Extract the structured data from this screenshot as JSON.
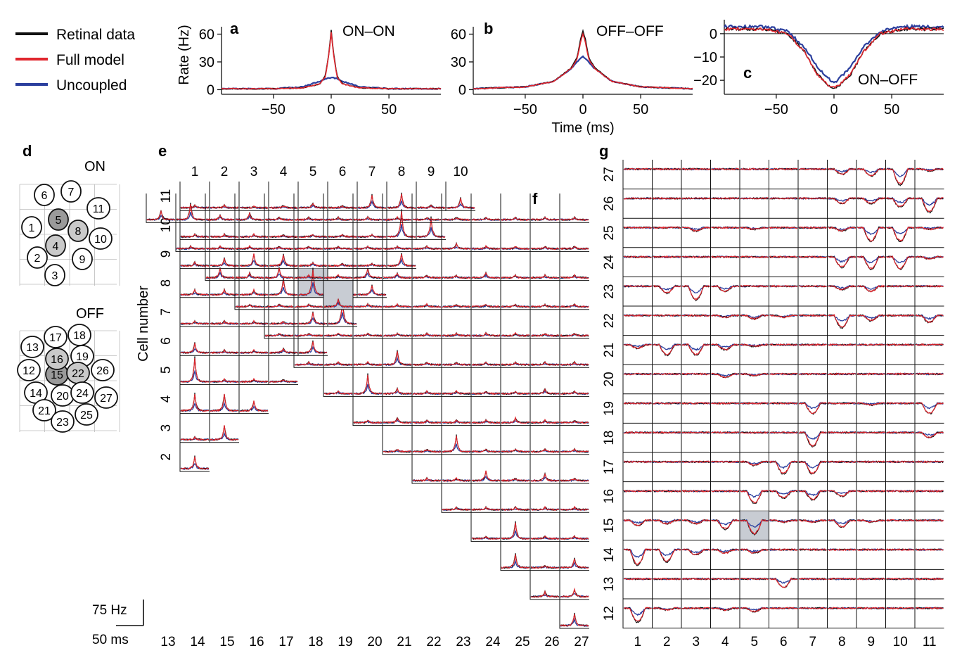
{
  "colors": {
    "retinal": "#111111",
    "full_model": "#e0262e",
    "uncoupled": "#2b3f9e",
    "grid": "#bbbbbb",
    "highlight": "#c8ccd3",
    "cell_fill": "#c9c9c9",
    "cell_fill_dark": "#9a9a9a"
  },
  "legend": [
    "Retinal data",
    "Full model",
    "Uncoupled"
  ],
  "shared": {
    "ylabel": "Rate (Hz)",
    "xlabel": "Time (ms)",
    "xticks": [
      -50,
      0,
      50
    ]
  },
  "panels": {
    "a": {
      "letter": "a",
      "title": "ON–ON",
      "yticks": [
        0,
        30,
        60
      ]
    },
    "b": {
      "letter": "b",
      "title": "OFF–OFF",
      "yticks": [
        0,
        30,
        60
      ]
    },
    "c": {
      "letter": "c",
      "title": "ON–OFF",
      "yticks": [
        0,
        -10,
        -20
      ]
    },
    "d": {
      "letter": "d",
      "on_title": "ON",
      "off_title": "OFF"
    },
    "e": {
      "letter": "e",
      "ylabel": "Cell number"
    },
    "f": {
      "letter": "f"
    },
    "g": {
      "letter": "g"
    }
  },
  "scale_bar": {
    "rate": "75 Hz",
    "time": "50 ms"
  },
  "chart_data": [
    {
      "type": "line",
      "panel": "a",
      "title": "ON–ON",
      "xlabel": "",
      "ylabel": "Rate (Hz)",
      "xlim": [
        -95,
        95
      ],
      "ylim": [
        -5,
        68
      ],
      "series": [
        {
          "name": "Retinal data",
          "x": [
            -95,
            -50,
            -25,
            -10,
            -5,
            -2,
            0,
            2,
            5,
            10,
            25,
            50,
            95
          ],
          "values": [
            1,
            1,
            2,
            6,
            15,
            40,
            64,
            40,
            15,
            6,
            2,
            1,
            1
          ]
        },
        {
          "name": "Full model",
          "x": [
            -95,
            -50,
            -25,
            -10,
            -5,
            -2,
            0,
            2,
            5,
            10,
            25,
            50,
            95
          ],
          "values": [
            1,
            1,
            2,
            6,
            14,
            38,
            62,
            38,
            14,
            6,
            2,
            1,
            1
          ]
        },
        {
          "name": "Uncoupled",
          "x": [
            -95,
            -50,
            -25,
            -10,
            -5,
            0,
            5,
            10,
            25,
            50,
            95
          ],
          "values": [
            1,
            1,
            3,
            9,
            12,
            13,
            12,
            9,
            3,
            1,
            1
          ]
        }
      ]
    },
    {
      "type": "line",
      "panel": "b",
      "title": "OFF–OFF",
      "xlabel": "Time (ms)",
      "ylabel": "",
      "xlim": [
        -95,
        95
      ],
      "ylim": [
        -5,
        68
      ],
      "series": [
        {
          "name": "Retinal data",
          "x": [
            -95,
            -50,
            -25,
            -10,
            -5,
            -2,
            0,
            2,
            5,
            10,
            25,
            50,
            95
          ],
          "values": [
            1,
            3,
            9,
            24,
            35,
            55,
            63,
            55,
            35,
            24,
            9,
            3,
            1
          ]
        },
        {
          "name": "Full model",
          "x": [
            -95,
            -50,
            -25,
            -10,
            -5,
            -2,
            0,
            2,
            5,
            10,
            25,
            50,
            95
          ],
          "values": [
            1,
            3,
            9,
            23,
            33,
            52,
            60,
            52,
            33,
            23,
            9,
            3,
            1
          ]
        },
        {
          "name": "Uncoupled",
          "x": [
            -95,
            -50,
            -25,
            -10,
            -5,
            0,
            5,
            10,
            25,
            50,
            95
          ],
          "values": [
            1,
            3,
            9,
            23,
            30,
            36,
            30,
            23,
            9,
            3,
            1
          ]
        }
      ]
    },
    {
      "type": "line",
      "panel": "c",
      "title": "ON–OFF",
      "xlabel": "",
      "ylabel": "",
      "xlim": [
        -95,
        95
      ],
      "ylim": [
        -26,
        6
      ],
      "series": [
        {
          "name": "Retinal data",
          "x": [
            -95,
            -60,
            -40,
            -25,
            -15,
            -5,
            0,
            5,
            15,
            25,
            40,
            60,
            95
          ],
          "values": [
            2,
            2,
            0,
            -8,
            -17,
            -22,
            -24,
            -22,
            -17,
            -8,
            0,
            2,
            2
          ]
        },
        {
          "name": "Full model",
          "x": [
            -95,
            -60,
            -40,
            -25,
            -15,
            -5,
            0,
            5,
            15,
            25,
            40,
            60,
            95
          ],
          "values": [
            2,
            2,
            0,
            -8,
            -17,
            -22,
            -23,
            -22,
            -17,
            -8,
            0,
            2,
            2
          ]
        },
        {
          "name": "Uncoupled",
          "x": [
            -95,
            -60,
            -40,
            -25,
            -15,
            -5,
            0,
            5,
            15,
            25,
            40,
            60,
            95
          ],
          "values": [
            3,
            3,
            1,
            -6,
            -14,
            -19,
            -21,
            -19,
            -14,
            -6,
            1,
            3,
            3
          ]
        }
      ]
    },
    {
      "type": "line",
      "panel": "e",
      "note": "pairwise ON–ON cross-correlations, triangular grid",
      "columns": [
        "1",
        "2",
        "3",
        "4",
        "5",
        "6",
        "7",
        "8",
        "9",
        "10"
      ],
      "rows": [
        "11",
        "10",
        "9",
        "8",
        "7",
        "6",
        "5",
        "4",
        "3",
        "2"
      ],
      "peaks": [
        [
          0.1,
          0.1,
          0.05,
          0.1,
          0.2,
          0.1,
          0.55,
          0.6,
          0.1,
          0.4
        ],
        [
          0.1,
          0.1,
          0.1,
          0.1,
          0.1,
          0.1,
          0.1,
          1.1,
          0.8
        ],
        [
          0.15,
          0.3,
          0.5,
          0.5,
          0.15,
          0.1,
          0.1,
          0.5
        ],
        [
          0.2,
          0.2,
          0.2,
          0.7,
          1.1,
          0.1,
          0.4
        ],
        [
          0.1,
          0.1,
          0.1,
          0.1,
          0.5,
          1.0
        ],
        [
          0.4,
          0.1,
          0.1,
          0.2,
          0.5
        ],
        [
          1.0,
          0.1,
          0.1,
          0.1
        ],
        [
          0.7,
          0.7,
          0.4
        ],
        [
          0.1,
          0.6
        ],
        [
          0.5
        ]
      ],
      "highlight": [
        3,
        4
      ]
    },
    {
      "type": "line",
      "panel": "f",
      "note": "pairwise OFF–OFF cross-correlations, triangular grid",
      "columns": [
        "13",
        "14",
        "15",
        "16",
        "17",
        "18",
        "19",
        "20",
        "21",
        "22",
        "23",
        "24",
        "25",
        "26",
        "27"
      ],
      "peaks": [
        [
          0.5
        ],
        [
          0.2,
          0.3
        ],
        [
          0.6,
          0.1,
          0.4
        ],
        [
          0.1,
          0.7,
          0.1,
          0.1
        ],
        [
          0.1,
          0.1,
          0.1,
          0.1,
          0.1
        ],
        [
          0.1,
          0.1,
          0.4,
          0.1,
          0.3,
          0.1
        ],
        [
          0.1,
          0.1,
          0.7,
          0.1,
          0.1,
          0.1,
          0.1
        ],
        [
          0.1,
          0.2,
          0.1,
          0.1,
          0.1,
          0.2,
          0.1,
          0.1
        ],
        [
          0.1,
          0.8,
          0.2,
          0.1,
          0.1,
          0.1,
          0.1,
          0.2,
          0.1
        ],
        [
          0.1,
          0.1,
          0.1,
          0.6,
          0.1,
          0.1,
          0.1,
          0.1,
          0.1,
          0.1
        ],
        [
          0.1,
          0.1,
          0.1,
          0.1,
          0.1,
          0.1,
          0.1,
          0.1,
          0.1,
          0.1,
          0.1
        ],
        [
          0.1,
          0.1,
          0.1,
          0.3,
          0.1,
          0.1,
          0.1,
          0.1,
          0.1,
          0.1,
          0.1,
          0.1
        ],
        [
          0.4,
          0.2,
          0.4,
          0.1,
          0.1,
          0.4,
          0.2,
          0.1,
          0.1,
          0.2,
          0.1,
          0.1,
          0.1
        ],
        [
          0.1,
          0.1,
          0.1,
          0.1,
          0.1,
          0.1,
          0.1,
          0.1,
          0.1,
          0.2,
          0.1,
          0.1,
          0.1,
          0.1
        ],
        [
          0.4,
          0.7,
          0.2,
          0.3,
          0.1,
          0.1,
          0.1,
          0.1,
          0.1,
          0.1,
          0.1,
          0.1,
          0.1,
          0.1,
          0.1
        ]
      ],
      "highlight": [
        11,
        3
      ]
    },
    {
      "type": "line",
      "panel": "g",
      "note": "ON–OFF cross-correlations, full grid (negative dips)",
      "columns": [
        "1",
        "2",
        "3",
        "4",
        "5",
        "6",
        "7",
        "8",
        "9",
        "10",
        "11"
      ],
      "rows": [
        "27",
        "26",
        "25",
        "24",
        "23",
        "22",
        "21",
        "20",
        "19",
        "18",
        "17",
        "16",
        "15",
        "14",
        "13",
        "12"
      ],
      "dips": [
        [
          0,
          0,
          0,
          0,
          0,
          0,
          0,
          0.3,
          0.4,
          0.9,
          0.1
        ],
        [
          0,
          0,
          0,
          0,
          0,
          0,
          0,
          0.3,
          0.3,
          0.5,
          0.8
        ],
        [
          0,
          0,
          0.2,
          0,
          0.1,
          0,
          0,
          0.2,
          0.8,
          0.8,
          0.1
        ],
        [
          0,
          0,
          0,
          0,
          0,
          0,
          0,
          0.6,
          0.7,
          0.7,
          0.1
        ],
        [
          0,
          0.4,
          0.8,
          0.3,
          0,
          0,
          0,
          0.2,
          0.3,
          0,
          0
        ],
        [
          0,
          0,
          0,
          0.1,
          0.2,
          0.1,
          0,
          0.7,
          0.3,
          0,
          0.4
        ],
        [
          0.2,
          0.6,
          0.6,
          0.3,
          0.1,
          0,
          0,
          0,
          0,
          0,
          0
        ],
        [
          0,
          0,
          0,
          0.2,
          0.1,
          0,
          0,
          0,
          0,
          0,
          0
        ],
        [
          0,
          0,
          0,
          0,
          0,
          0,
          0.6,
          0,
          0.1,
          0,
          0.6
        ],
        [
          0,
          0,
          0,
          0,
          0,
          0,
          0.8,
          0,
          0,
          0,
          0.3
        ],
        [
          0,
          0,
          0,
          0,
          0.2,
          0.7,
          0.7,
          0,
          0,
          0,
          0
        ],
        [
          0,
          0,
          0,
          0,
          0.7,
          0.4,
          0.5,
          0.3,
          0,
          0,
          0
        ],
        [
          0.3,
          0.2,
          0.2,
          0.5,
          0.8,
          0.1,
          0.1,
          0.4,
          0.1,
          0,
          0
        ],
        [
          0.9,
          0.7,
          0.3,
          0.2,
          0.2,
          0,
          0,
          0,
          0,
          0,
          0
        ],
        [
          0,
          0,
          0,
          0,
          0,
          0.5,
          0,
          0,
          0,
          0,
          0
        ],
        [
          0.8,
          0.1,
          0,
          0.1,
          0.2,
          0,
          0,
          0,
          0,
          0,
          0
        ]
      ],
      "highlight": [
        12,
        4
      ]
    },
    {
      "type": "diagram",
      "panel": "d",
      "on_cells": [
        {
          "id": "1",
          "x": 45,
          "y": 323,
          "fill": "none"
        },
        {
          "id": "2",
          "x": 53,
          "y": 366,
          "fill": "none"
        },
        {
          "id": "3",
          "x": 78,
          "y": 391,
          "fill": "none"
        },
        {
          "id": "4",
          "x": 79,
          "y": 349,
          "fill": "light"
        },
        {
          "id": "5",
          "x": 83,
          "y": 312,
          "fill": "dark"
        },
        {
          "id": "6",
          "x": 63,
          "y": 277,
          "fill": "none"
        },
        {
          "id": "7",
          "x": 101,
          "y": 272,
          "fill": "none"
        },
        {
          "id": "8",
          "x": 111,
          "y": 328,
          "fill": "light"
        },
        {
          "id": "9",
          "x": 117,
          "y": 368,
          "fill": "none"
        },
        {
          "id": "10",
          "x": 143,
          "y": 339,
          "fill": "none"
        },
        {
          "id": "11",
          "x": 140,
          "y": 296,
          "fill": "none"
        }
      ],
      "off_cells": [
        {
          "id": "12",
          "x": 41,
          "y": 526,
          "fill": "none"
        },
        {
          "id": "13",
          "x": 46,
          "y": 493,
          "fill": "none"
        },
        {
          "id": "14",
          "x": 51,
          "y": 558,
          "fill": "none"
        },
        {
          "id": "15",
          "x": 81,
          "y": 532,
          "fill": "dark"
        },
        {
          "id": "16",
          "x": 81,
          "y": 510,
          "fill": "light"
        },
        {
          "id": "17",
          "x": 79,
          "y": 479,
          "fill": "none"
        },
        {
          "id": "18",
          "x": 113,
          "y": 476,
          "fill": "none"
        },
        {
          "id": "19",
          "x": 117,
          "y": 506,
          "fill": "none"
        },
        {
          "id": "20",
          "x": 89,
          "y": 562,
          "fill": "none"
        },
        {
          "id": "21",
          "x": 63,
          "y": 583,
          "fill": "none"
        },
        {
          "id": "22",
          "x": 111,
          "y": 530,
          "fill": "light"
        },
        {
          "id": "23",
          "x": 89,
          "y": 599,
          "fill": "none"
        },
        {
          "id": "24",
          "x": 117,
          "y": 558,
          "fill": "none"
        },
        {
          "id": "25",
          "x": 123,
          "y": 589,
          "fill": "none"
        },
        {
          "id": "26",
          "x": 146,
          "y": 526,
          "fill": "none"
        },
        {
          "id": "27",
          "x": 151,
          "y": 565,
          "fill": "none"
        }
      ]
    }
  ]
}
